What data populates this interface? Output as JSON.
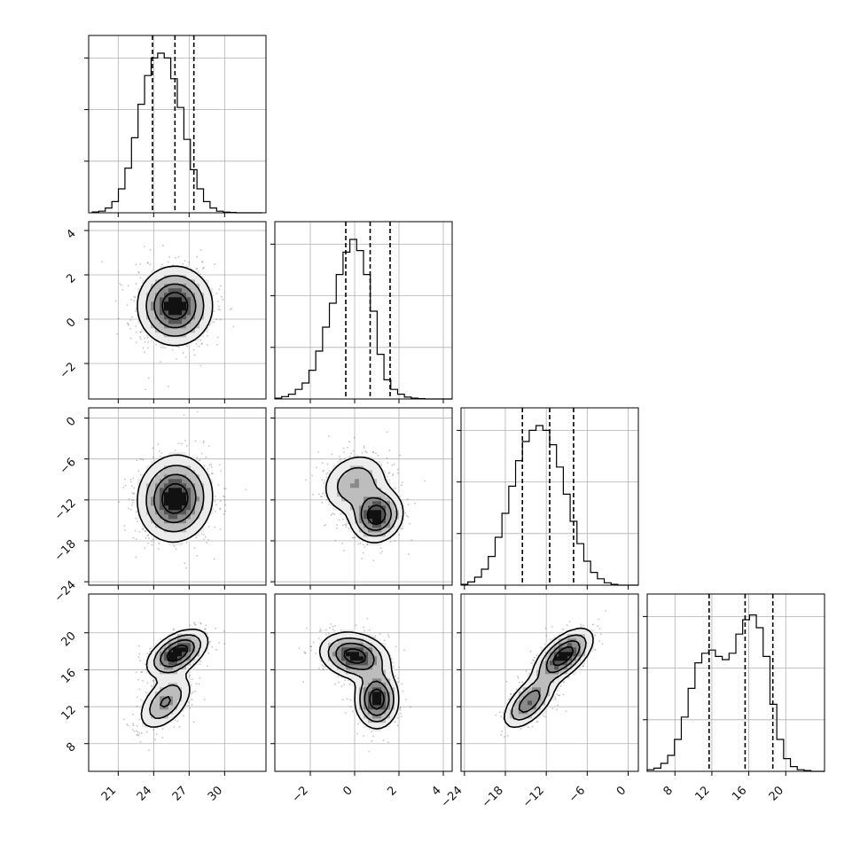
{
  "chart_data": {
    "type": "corner",
    "title": "",
    "variables": [
      {
        "name": "",
        "range": [
          18.5,
          33.5
        ],
        "ticks": [
          21,
          24,
          27,
          30
        ],
        "tick_labels": [
          "21",
          "24",
          "27",
          "30"
        ],
        "quantiles": [
          23.9,
          25.8,
          27.4
        ]
      },
      {
        "name": "",
        "range": [
          -3.6,
          4.4
        ],
        "ticks": [
          -2,
          0,
          2,
          4
        ],
        "tick_labels": [
          "−2",
          "0",
          "2",
          "4"
        ],
        "quantiles": [
          -0.4,
          0.7,
          1.6
        ]
      },
      {
        "name": "",
        "range": [
          -24.5,
          1.5
        ],
        "ticks": [
          -24,
          -18,
          -12,
          -6,
          0
        ],
        "tick_labels": [
          "−24",
          "−18",
          "−12",
          "−6",
          "0"
        ],
        "quantiles": [
          -15.5,
          -11.5,
          -8.0
        ]
      },
      {
        "name": "",
        "range": [
          5.0,
          24.2
        ],
        "ticks": [
          8,
          12,
          16,
          20
        ],
        "tick_labels": [
          "8",
          "12",
          "16",
          "20"
        ],
        "quantiles": [
          11.7,
          15.6,
          18.6
        ]
      }
    ],
    "histograms": [
      {
        "variable": 0,
        "bin_edges": [
          18.8,
          33.2
        ],
        "bins": 26,
        "counts": [
          0.005,
          0.01,
          0.03,
          0.07,
          0.15,
          0.28,
          0.47,
          0.68,
          0.86,
          0.97,
          1.0,
          0.97,
          0.84,
          0.66,
          0.46,
          0.27,
          0.15,
          0.07,
          0.03,
          0.01,
          0.004,
          0.002,
          0.0,
          0.0,
          0.0,
          0.0
        ]
      },
      {
        "variable": 1,
        "bin_edges": [
          -3.6,
          4.4
        ],
        "bins": 26,
        "counts": [
          0.005,
          0.015,
          0.03,
          0.06,
          0.1,
          0.18,
          0.3,
          0.45,
          0.6,
          0.78,
          0.92,
          1.0,
          0.93,
          0.78,
          0.55,
          0.28,
          0.12,
          0.06,
          0.03,
          0.012,
          0.005,
          0.002,
          0.0,
          0.0,
          0.0,
          0.0
        ]
      },
      {
        "variable": 2,
        "bin_edges": [
          -24.5,
          1.5
        ],
        "bins": 26,
        "counts": [
          0.005,
          0.02,
          0.05,
          0.1,
          0.18,
          0.3,
          0.45,
          0.62,
          0.78,
          0.9,
          0.97,
          1.0,
          0.97,
          0.88,
          0.74,
          0.57,
          0.4,
          0.26,
          0.15,
          0.08,
          0.04,
          0.015,
          0.005,
          0.0,
          0.0,
          0.0
        ]
      },
      {
        "variable": 3,
        "bin_edges": [
          5.0,
          24.2
        ],
        "bins": 26,
        "counts": [
          0.01,
          0.02,
          0.05,
          0.1,
          0.2,
          0.34,
          0.52,
          0.68,
          0.74,
          0.76,
          0.72,
          0.7,
          0.74,
          0.86,
          0.95,
          0.98,
          0.9,
          0.72,
          0.42,
          0.2,
          0.08,
          0.03,
          0.01,
          0.005,
          0.0,
          0.0
        ]
      }
    ],
    "pairs": [
      {
        "x": 0,
        "y": 1,
        "components": [
          {
            "mean": [
              25.8,
              0.6
            ],
            "sd": [
              1.6,
              0.9
            ],
            "rho": 0.0,
            "w": 1.0
          }
        ]
      },
      {
        "x": 0,
        "y": 2,
        "components": [
          {
            "mean": [
              25.8,
              -11.8
            ],
            "sd": [
              1.6,
              3.2
            ],
            "rho": 0.05,
            "w": 1.0
          }
        ]
      },
      {
        "x": 1,
        "y": 2,
        "components": [
          {
            "mean": [
              0.0,
              -9.6
            ],
            "sd": [
              0.8,
              2.4
            ],
            "rho": 0.2,
            "w": 0.45
          },
          {
            "mean": [
              1.0,
              -14.3
            ],
            "sd": [
              0.6,
              2.0
            ],
            "rho": 0.1,
            "w": 0.55
          }
        ]
      },
      {
        "x": 0,
        "y": 3,
        "components": [
          {
            "mean": [
              26.0,
              17.8
            ],
            "sd": [
              1.3,
              1.3
            ],
            "rho": 0.5,
            "w": 0.6
          },
          {
            "mean": [
              25.0,
              12.5
            ],
            "sd": [
              1.2,
              1.6
            ],
            "rho": 0.5,
            "w": 0.4
          }
        ]
      },
      {
        "x": 1,
        "y": 3,
        "components": [
          {
            "mean": [
              0.0,
              17.5
            ],
            "sd": [
              0.8,
              1.3
            ],
            "rho": -0.2,
            "w": 0.55
          },
          {
            "mean": [
              1.0,
              12.8
            ],
            "sd": [
              0.5,
              1.6
            ],
            "rho": 0.0,
            "w": 0.45
          }
        ]
      },
      {
        "x": 2,
        "y": 3,
        "components": [
          {
            "mean": [
              -9.5,
              17.5
            ],
            "sd": [
              2.2,
              1.5
            ],
            "rho": 0.6,
            "w": 0.6
          },
          {
            "mean": [
              -14.5,
              12.5
            ],
            "sd": [
              2.0,
              1.5
            ],
            "rho": 0.6,
            "w": 0.4
          }
        ]
      }
    ],
    "grid": true,
    "colors": {
      "hist": "#000000",
      "quantile": "#000000",
      "grid": "#b0b0b0",
      "points": "#555555",
      "contour": "#000000"
    }
  }
}
